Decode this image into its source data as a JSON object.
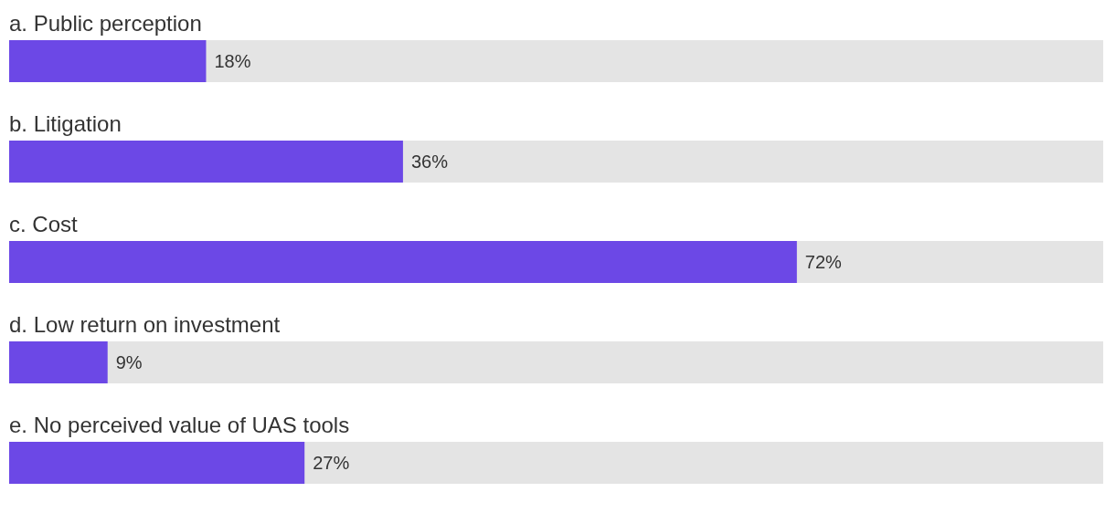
{
  "chart_data": {
    "type": "bar",
    "orientation": "horizontal",
    "categories": [
      "a. Public perception",
      "b. Litigation",
      "c. Cost",
      "d. Low return on investment",
      "e. No perceived value of UAS tools"
    ],
    "values": [
      18,
      36,
      72,
      9,
      27
    ],
    "value_labels": [
      "18%",
      "36%",
      "72%",
      "9%",
      "27%"
    ],
    "color": "#6c48e6",
    "xlim": [
      0,
      100
    ],
    "tick_labels": "y"
  }
}
